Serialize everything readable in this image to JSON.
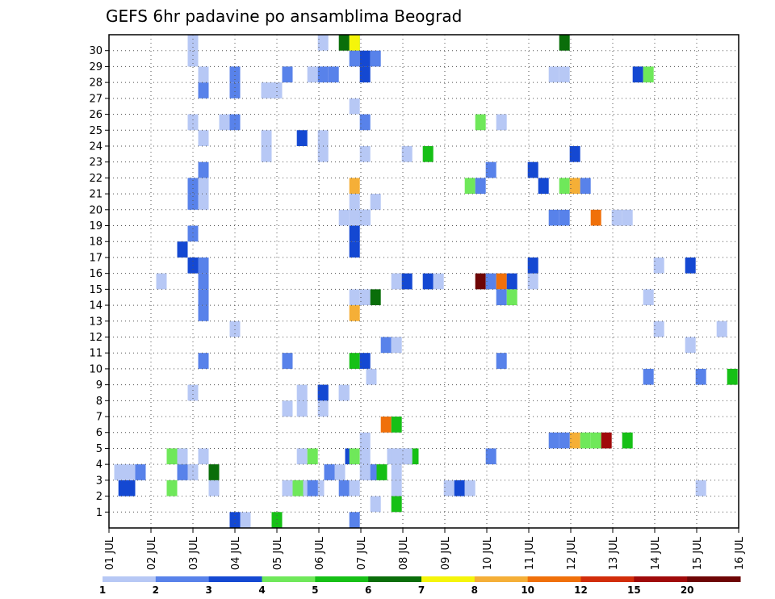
{
  "chart_data": {
    "type": "heatmap",
    "title": "GEFS 6hr padavine po ansamblima Beograd",
    "xlabel": "",
    "ylabel": "",
    "x_ticks": [
      "01 JUL",
      "02 JUL",
      "03 JUL",
      "04 JUL",
      "05 JUL",
      "06 JUL",
      "07 JUL",
      "08 JUL",
      "09 JUL",
      "10 JUL",
      "11 JUL",
      "12 JUL",
      "13 JUL",
      "14 JUL",
      "15 JUL",
      "16 JUL"
    ],
    "y_ticks": [
      "1",
      "2",
      "3",
      "4",
      "5",
      "6",
      "7",
      "8",
      "9",
      "10",
      "11",
      "12",
      "13",
      "14",
      "15",
      "16",
      "17",
      "18",
      "19",
      "20",
      "21",
      "22",
      "23",
      "24",
      "25",
      "26",
      "27",
      "28",
      "29",
      "30"
    ],
    "grid": true,
    "colorbar": {
      "labels": [
        "1",
        "2",
        "3",
        "4",
        "5",
        "6",
        "7",
        "8",
        "10",
        "12",
        "15",
        "20"
      ],
      "colors": [
        "#b7c8f5",
        "#5882ea",
        "#1448d2",
        "#6fe85a",
        "#16c016",
        "#0a6e0a",
        "#f5f50a",
        "#f5af37",
        "#f0700a",
        "#d22d0a",
        "#a00a0a",
        "#6e0505"
      ]
    },
    "cells": [
      [
        3,
        2,
        0.35
      ],
      [
        3,
        2,
        0.5
      ],
      [
        4,
        2,
        1.5
      ],
      [
        4,
        4,
        1.5
      ],
      [
        4,
        4,
        1.75
      ],
      [
        1,
        2,
        4.25
      ],
      [
        4,
        2,
        4.5
      ],
      [
        1,
        2,
        4.75
      ],
      [
        1,
        2,
        5.0
      ],
      [
        2,
        3,
        5.25
      ],
      [
        1,
        3,
        5.5
      ],
      [
        3,
        4,
        5.75
      ],
      [
        2,
        3,
        6.25
      ],
      [
        5,
        3,
        6.5
      ],
      [
        1,
        4,
        6.75
      ],
      [
        1,
        4,
        7.0
      ],
      [
        5,
        4,
        7.25
      ],
      [
        2,
        3,
        0.75
      ],
      [
        1,
        3,
        0.5
      ],
      [
        1,
        3,
        0.25
      ],
      [
        2,
        3,
        1.75
      ],
      [
        1,
        3,
        2.0
      ],
      [
        1,
        8,
        2.0
      ],
      [
        2,
        10,
        2.25
      ],
      [
        1,
        15,
        1.25
      ],
      [
        3,
        17,
        1.75
      ],
      [
        2,
        18,
        2.0
      ],
      [
        2,
        22,
        2.25
      ],
      [
        1,
        24,
        2.25
      ],
      [
        1,
        25,
        2.0
      ],
      [
        2,
        27,
        2.25
      ],
      [
        1,
        28,
        2.25
      ],
      [
        1,
        29,
        2.0
      ],
      [
        1,
        30,
        2.0
      ],
      [
        1,
        4,
        1.75
      ],
      [
        1,
        4,
        2.25
      ],
      [
        1,
        2,
        2.5
      ],
      [
        6,
        3,
        2.5
      ],
      [
        2,
        20,
        2.0
      ],
      [
        1,
        20,
        2.25
      ],
      [
        2,
        14,
        2.25
      ],
      [
        2,
        13,
        2.25
      ],
      [
        2,
        15,
        2.25
      ],
      [
        2,
        16,
        2.25
      ],
      [
        3,
        16,
        2.0
      ],
      [
        2,
        21,
        2.0
      ],
      [
        1,
        21,
        2.25
      ],
      [
        3,
        0,
        3.0
      ],
      [
        1,
        0,
        3.25
      ],
      [
        2,
        27,
        3.0
      ],
      [
        1,
        28,
        3.0
      ],
      [
        2,
        28,
        3.0
      ],
      [
        1,
        25,
        2.75
      ],
      [
        2,
        25,
        3.0
      ],
      [
        1,
        12,
        3.0
      ],
      [
        5,
        0,
        4.0
      ],
      [
        1,
        24,
        3.75
      ],
      [
        1,
        23,
        3.75
      ],
      [
        1,
        27,
        3.75
      ],
      [
        1,
        27,
        4.0
      ],
      [
        2,
        28,
        4.25
      ],
      [
        2,
        10,
        4.25
      ],
      [
        1,
        7,
        4.25
      ],
      [
        3,
        24,
        4.6
      ],
      [
        1,
        4,
        4.6
      ],
      [
        4,
        4,
        4.85
      ],
      [
        2,
        2,
        4.85
      ],
      [
        1,
        7,
        4.6
      ],
      [
        1,
        8,
        4.6
      ],
      [
        2,
        8,
        5.1
      ],
      [
        3,
        8,
        5.1
      ],
      [
        1,
        7,
        5.1
      ],
      [
        1,
        8,
        5.6
      ],
      [
        1,
        28,
        4.85
      ],
      [
        2,
        28,
        5.1
      ],
      [
        2,
        28,
        5.35
      ],
      [
        1,
        30,
        5.1
      ],
      [
        1,
        24,
        5.1
      ],
      [
        1,
        23,
        5.1
      ],
      [
        6,
        30,
        5.6
      ],
      [
        5,
        30,
        5.85
      ],
      [
        7,
        30,
        5.85
      ],
      [
        2,
        29,
        5.85
      ],
      [
        3,
        29,
        6.1
      ],
      [
        2,
        29,
        6.35
      ],
      [
        3,
        28,
        6.1
      ],
      [
        1,
        26,
        5.85
      ],
      [
        2,
        2,
        5.6
      ],
      [
        1,
        2,
        5.85
      ],
      [
        4,
        4,
        5.85
      ],
      [
        1,
        4,
        6.1
      ],
      [
        1,
        3,
        6.1
      ],
      [
        1,
        5,
        6.1
      ],
      [
        2,
        0,
        5.85
      ],
      [
        1,
        23,
        6.1
      ],
      [
        9,
        21,
        5.85
      ],
      [
        1,
        20,
        5.85
      ],
      [
        2,
        19,
        6.1
      ],
      [
        1,
        19,
        5.6
      ],
      [
        1,
        19,
        5.85
      ],
      [
        1,
        20,
        6.35
      ],
      [
        3,
        18,
        5.85
      ],
      [
        3,
        17,
        5.85
      ],
      [
        1,
        14,
        5.85
      ],
      [
        1,
        14,
        6.1
      ],
      [
        6,
        14,
        6.35
      ],
      [
        8,
        13,
        5.85
      ],
      [
        5,
        10,
        5.85
      ],
      [
        3,
        10,
        6.1
      ],
      [
        1,
        1,
        6.35
      ],
      [
        1,
        8,
        5.6
      ],
      [
        2,
        25,
        6.1
      ],
      [
        1,
        19,
        6.1
      ],
      [
        1,
        15,
        6.85
      ],
      [
        10,
        6,
        6.6
      ],
      [
        5,
        6,
        6.85
      ],
      [
        1,
        4,
        6.85
      ],
      [
        1,
        4,
        7.1
      ],
      [
        1,
        3,
        6.85
      ],
      [
        1,
        2,
        6.85
      ],
      [
        5,
        1,
        6.85
      ],
      [
        1,
        9,
        6.25
      ],
      [
        2,
        11,
        6.6
      ],
      [
        1,
        11,
        6.85
      ],
      [
        3,
        15,
        7.1
      ],
      [
        3,
        15,
        7.6
      ],
      [
        1,
        15,
        7.85
      ],
      [
        1,
        23,
        7.1
      ],
      [
        5,
        23,
        7.6
      ],
      [
        1,
        2,
        8.1
      ],
      [
        3,
        2,
        8.35
      ],
      [
        1,
        2,
        8.6
      ],
      [
        4,
        21,
        8.6
      ],
      [
        2,
        21,
        8.85
      ],
      [
        4,
        25,
        8.85
      ],
      [
        20,
        15,
        8.85
      ],
      [
        2,
        15,
        9.1
      ],
      [
        10,
        15,
        9.35
      ],
      [
        3,
        15,
        9.6
      ],
      [
        2,
        14,
        9.35
      ],
      [
        4,
        14,
        9.6
      ],
      [
        2,
        10,
        9.35
      ],
      [
        1,
        25,
        9.35
      ],
      [
        2,
        22,
        9.1
      ],
      [
        2,
        4,
        9.1
      ],
      [
        1,
        15,
        10.1
      ],
      [
        3,
        22,
        10.1
      ],
      [
        3,
        21,
        10.35
      ],
      [
        3,
        16,
        10.1
      ],
      [
        1,
        28,
        10.6
      ],
      [
        1,
        28,
        10.85
      ],
      [
        2,
        19,
        10.6
      ],
      [
        2,
        19,
        10.85
      ],
      [
        2,
        5,
        10.6
      ],
      [
        4,
        21,
        10.85
      ],
      [
        8,
        21,
        11.1
      ],
      [
        2,
        21,
        11.35
      ],
      [
        8,
        5,
        11.1
      ],
      [
        4,
        5,
        11.35
      ],
      [
        4,
        5,
        11.6
      ],
      [
        15,
        5,
        11.85
      ],
      [
        5,
        5,
        12.35
      ],
      [
        2,
        5,
        10.85
      ],
      [
        3,
        23,
        11.1
      ],
      [
        11,
        19,
        11.6
      ],
      [
        1,
        19,
        12.1
      ],
      [
        1,
        19,
        12.35
      ],
      [
        6,
        30,
        10.85
      ],
      [
        3,
        28,
        12.6
      ],
      [
        4,
        28,
        12.85
      ],
      [
        1,
        14,
        12.85
      ],
      [
        1,
        16,
        13.1
      ],
      [
        1,
        12,
        13.1
      ],
      [
        2,
        9,
        12.85
      ],
      [
        3,
        16,
        13.85
      ],
      [
        1,
        11,
        13.85
      ],
      [
        1,
        2,
        14.1
      ],
      [
        2,
        9,
        14.1
      ],
      [
        1,
        12,
        14.6
      ],
      [
        5,
        9,
        14.85
      ]
    ]
  }
}
